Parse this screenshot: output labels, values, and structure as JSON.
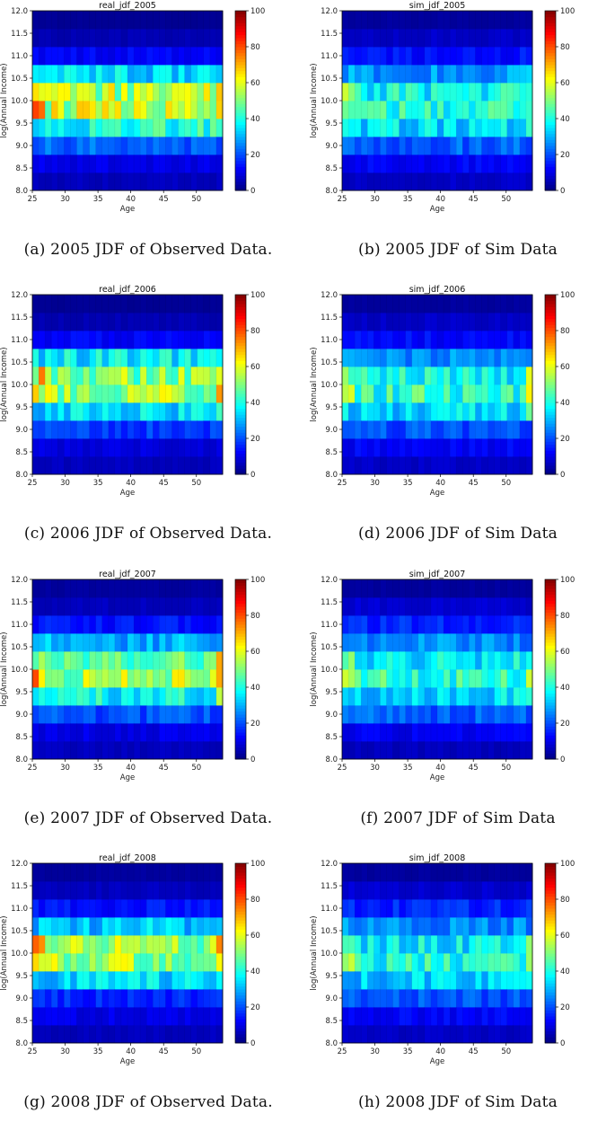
{
  "colormap": "jet",
  "axes": {
    "x_min": 25,
    "x_max": 54,
    "y_min": 8.0,
    "y_max": 12.0,
    "x_ticks": [
      25,
      30,
      35,
      40,
      45,
      50
    ],
    "x_tick_labels": [
      "25",
      "30",
      "35",
      "40",
      "45",
      "50"
    ],
    "y_ticks": [
      8.0,
      8.5,
      9.0,
      9.5,
      10.0,
      10.5,
      11.0,
      11.5,
      12.0
    ],
    "y_tick_labels": [
      "8.0",
      "8.5",
      "9.0",
      "9.5",
      "10.0",
      "10.5",
      "11.0",
      "11.5",
      "12.0"
    ],
    "xlabel": "Age",
    "ylabel": "log(Annual Income)"
  },
  "colorbar": {
    "min": 0,
    "max": 100,
    "ticks": [
      0,
      20,
      40,
      60,
      80,
      100
    ],
    "tick_labels": [
      "0",
      "20",
      "40",
      "60",
      "80",
      "100"
    ]
  },
  "chart_data": [
    {
      "type": "heatmap",
      "title": "real_jdf_2005",
      "caption": "(a) 2005 JDF of Observed Data.",
      "x_bins": [
        25,
        26,
        27,
        28,
        29,
        30,
        31,
        32,
        33,
        34,
        35,
        36,
        37,
        38,
        39,
        40,
        41,
        42,
        43,
        44,
        45,
        46,
        47,
        48,
        49,
        50,
        51,
        52,
        53,
        54
      ],
      "income_bin_centers": [
        8.2,
        8.6,
        9.0,
        9.4,
        9.8,
        10.2,
        10.6,
        11.0,
        11.4,
        11.8
      ],
      "band_profile": [
        6,
        10,
        22,
        40,
        56,
        55,
        34,
        12,
        5,
        2
      ],
      "age_trend": "early-age 9.8 band peaks ~75; end column 10.2 band ~65"
    },
    {
      "type": "heatmap",
      "title": "sim_jdf_2005",
      "caption": "(b) 2005 JDF of Sim Data",
      "x_bins": [
        25,
        26,
        27,
        28,
        29,
        30,
        31,
        32,
        33,
        34,
        35,
        36,
        37,
        38,
        39,
        40,
        41,
        42,
        43,
        44,
        45,
        46,
        47,
        48,
        49,
        50,
        51,
        52,
        53,
        54
      ],
      "income_bin_centers": [
        8.2,
        8.6,
        9.0,
        9.4,
        9.8,
        10.2,
        10.6,
        11.0,
        11.4,
        11.8
      ],
      "band_profile": [
        7,
        12,
        22,
        34,
        40,
        38,
        28,
        14,
        7,
        3
      ],
      "age_trend": "age 25 column 9.8 band ~70"
    },
    {
      "type": "heatmap",
      "title": "real_jdf_2006",
      "caption": "(c) 2006 JDF of Observed Data.",
      "x_bins": [
        25,
        26,
        27,
        28,
        29,
        30,
        31,
        32,
        33,
        34,
        35,
        36,
        37,
        38,
        39,
        40,
        41,
        42,
        43,
        44,
        45,
        46,
        47,
        48,
        49,
        50,
        51,
        52,
        53,
        54
      ],
      "income_bin_centers": [
        8.2,
        8.6,
        9.0,
        9.4,
        9.8,
        10.2,
        10.6,
        11.0,
        11.4,
        11.8
      ],
      "band_profile": [
        6,
        9,
        18,
        34,
        52,
        50,
        36,
        12,
        5,
        2
      ],
      "age_trend": "end column 9.8 band ~80"
    },
    {
      "type": "heatmap",
      "title": "sim_jdf_2006",
      "caption": "(d) 2006 JDF of Sim Data",
      "x_bins": [
        25,
        26,
        27,
        28,
        29,
        30,
        31,
        32,
        33,
        34,
        35,
        36,
        37,
        38,
        39,
        40,
        41,
        42,
        43,
        44,
        45,
        46,
        47,
        48,
        49,
        50,
        51,
        52,
        53,
        54
      ],
      "income_bin_centers": [
        8.2,
        8.6,
        9.0,
        9.4,
        9.8,
        10.2,
        10.6,
        11.0,
        11.4,
        11.8
      ],
      "band_profile": [
        7,
        12,
        20,
        34,
        42,
        38,
        26,
        13,
        7,
        3
      ],
      "age_trend": "age 26 column 9.8 band ~65"
    },
    {
      "type": "heatmap",
      "title": "real_jdf_2007",
      "caption": "(e) 2007 JDF of Observed Data.",
      "x_bins": [
        25,
        26,
        27,
        28,
        29,
        30,
        31,
        32,
        33,
        34,
        35,
        36,
        37,
        38,
        39,
        40,
        41,
        42,
        43,
        44,
        45,
        46,
        47,
        48,
        49,
        50,
        51,
        52,
        53,
        54
      ],
      "income_bin_centers": [
        8.2,
        8.6,
        9.0,
        9.4,
        9.8,
        10.2,
        10.6,
        11.0,
        11.4,
        11.8
      ],
      "band_profile": [
        6,
        10,
        20,
        38,
        54,
        46,
        30,
        14,
        6,
        3
      ],
      "age_trend": "end column 9.8 band ~75"
    },
    {
      "type": "heatmap",
      "title": "sim_jdf_2007",
      "caption": "(f) 2007 JDF of Sim Data",
      "x_bins": [
        25,
        26,
        27,
        28,
        29,
        30,
        31,
        32,
        33,
        34,
        35,
        36,
        37,
        38,
        39,
        40,
        41,
        42,
        43,
        44,
        45,
        46,
        47,
        48,
        49,
        50,
        51,
        52,
        53,
        54
      ],
      "income_bin_centers": [
        8.2,
        8.6,
        9.0,
        9.4,
        9.8,
        10.2,
        10.6,
        11.0,
        11.4,
        11.8
      ],
      "band_profile": [
        6,
        11,
        22,
        34,
        42,
        36,
        26,
        16,
        8,
        3
      ],
      "age_trend": "moderate, ~50 peak near ages 25-32"
    },
    {
      "type": "heatmap",
      "title": "real_jdf_2008",
      "caption": "(g) 2008 JDF of Observed Data.",
      "x_bins": [
        25,
        26,
        27,
        28,
        29,
        30,
        31,
        32,
        33,
        34,
        35,
        36,
        37,
        38,
        39,
        40,
        41,
        42,
        43,
        44,
        45,
        46,
        47,
        48,
        49,
        50,
        51,
        52,
        53,
        54
      ],
      "income_bin_centers": [
        8.2,
        8.6,
        9.0,
        9.4,
        9.8,
        10.2,
        10.6,
        11.0,
        11.4,
        11.8
      ],
      "band_profile": [
        6,
        10,
        16,
        34,
        52,
        52,
        32,
        14,
        6,
        3
      ],
      "age_trend": "end column 9.8-10.2 band ~65"
    },
    {
      "type": "heatmap",
      "title": "sim_jdf_2008",
      "caption": "(h) 2008 JDF of Sim Data",
      "x_bins": [
        25,
        26,
        27,
        28,
        29,
        30,
        31,
        32,
        33,
        34,
        35,
        36,
        37,
        38,
        39,
        40,
        41,
        42,
        43,
        44,
        45,
        46,
        47,
        48,
        49,
        50,
        51,
        52,
        53,
        54
      ],
      "income_bin_centers": [
        8.2,
        8.6,
        9.0,
        9.4,
        9.8,
        10.2,
        10.6,
        11.0,
        11.4,
        11.8
      ],
      "band_profile": [
        7,
        12,
        20,
        32,
        40,
        36,
        26,
        16,
        8,
        3
      ],
      "age_trend": "moderate, ~50 near ages 25-33"
    }
  ]
}
